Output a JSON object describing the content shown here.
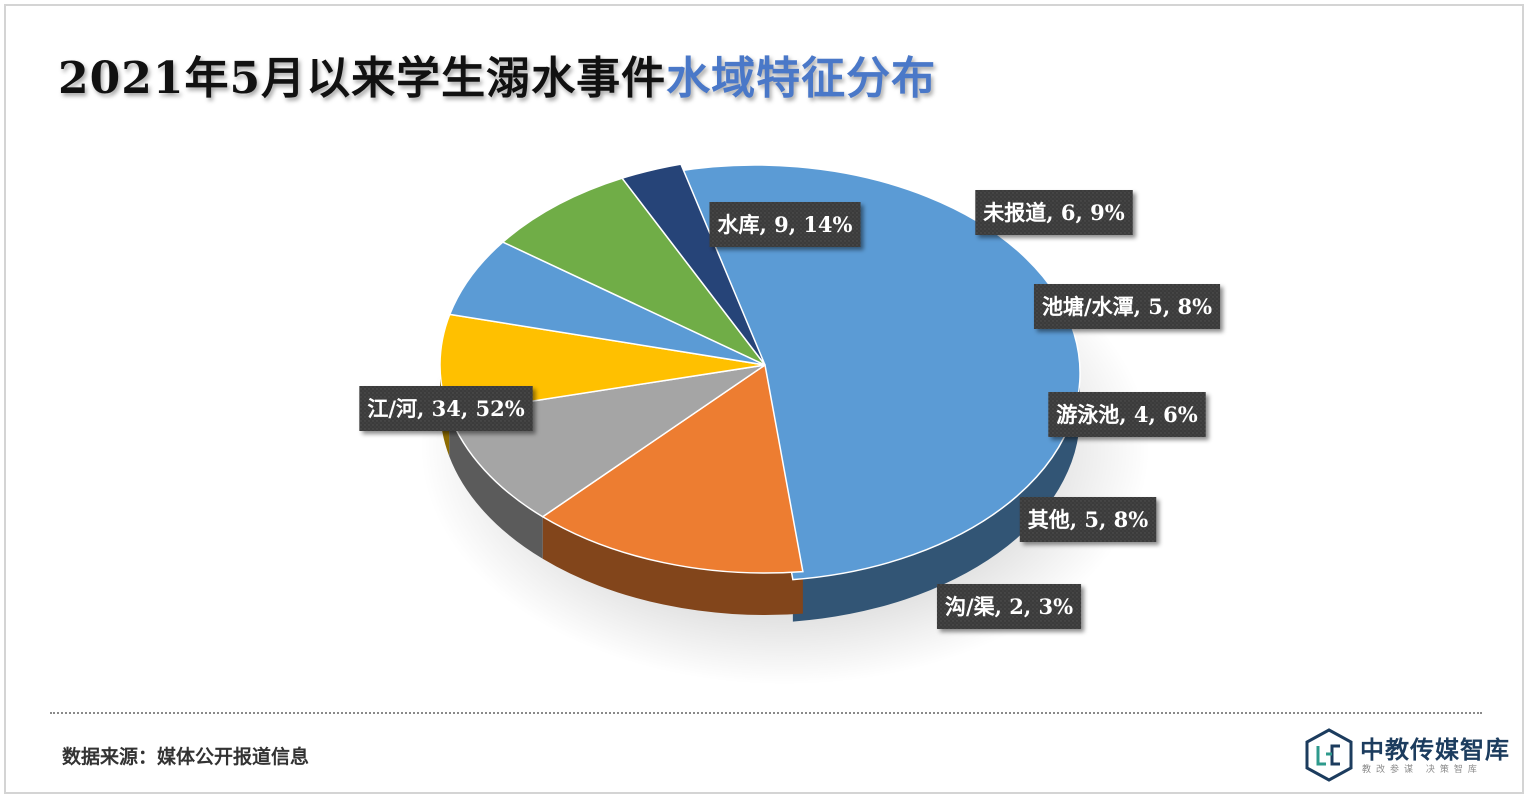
{
  "title": {
    "main": "2021年5月以来学生溺水事件",
    "highlight": "水域特征分布"
  },
  "source": "数据来源：媒体公开报道信息",
  "logo": {
    "name": "中教传媒智库",
    "slogan": "教改参谋  决策智库"
  },
  "chart_data": {
    "type": "pie",
    "style": "3d-exploded",
    "legend": "none",
    "slices": [
      {
        "name": "江/河",
        "value": 34,
        "percent": "52%",
        "label": "江/河, 34, 52%",
        "color": "#5b9bd5"
      },
      {
        "name": "水库",
        "value": 9,
        "percent": "14%",
        "label": "水库, 9, 14%",
        "color": "#ed7d31"
      },
      {
        "name": "未报道",
        "value": 6,
        "percent": "9%",
        "label": "未报道, 6, 9%",
        "color": "#a5a5a5"
      },
      {
        "name": "池塘/水潭",
        "value": 5,
        "percent": "8%",
        "label": "池塘/水潭, 5, 8%",
        "color": "#ffc000"
      },
      {
        "name": "游泳池",
        "value": 4,
        "percent": "6%",
        "label": "游泳池, 4, 6%",
        "color": "#5b9bd5"
      },
      {
        "name": "其他",
        "value": 5,
        "percent": "8%",
        "label": "其他, 5, 8%",
        "color": "#70ad47"
      },
      {
        "name": "沟/渠",
        "value": 2,
        "percent": "3%",
        "label": "沟/渠, 2, 3%",
        "color": "#264478"
      }
    ],
    "label_box_color": "#3d3d3d"
  }
}
